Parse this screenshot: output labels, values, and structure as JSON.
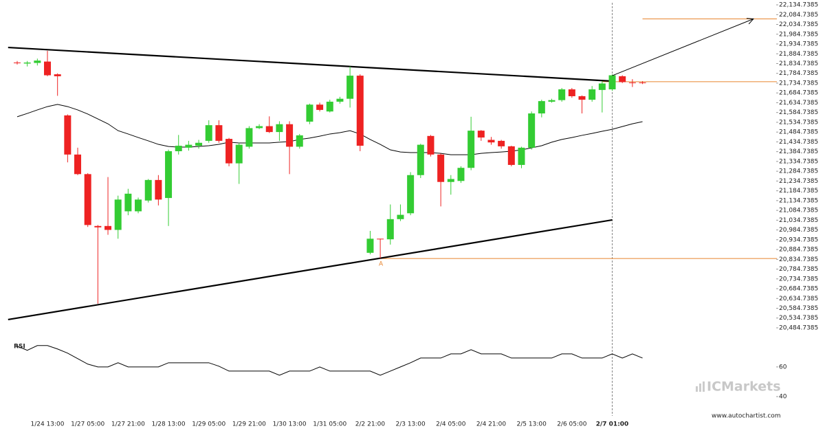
{
  "chart_data": {
    "type": "candlestick",
    "categories": [
      null,
      null,
      null,
      "1/24 13:00",
      null,
      null,
      null,
      "1/27 05:00",
      null,
      null,
      null,
      "1/27 21:00",
      null,
      null,
      null,
      "1/28 13:00",
      null,
      null,
      null,
      "1/29 05:00",
      null,
      null,
      null,
      "1/29 21:00",
      null,
      null,
      null,
      "1/30 13:00",
      null,
      null,
      null,
      "1/31 05:00",
      null,
      null,
      null,
      "2/2 21:00",
      null,
      null,
      null,
      "2/3 13:00",
      null,
      null,
      null,
      "2/4 05:00",
      null,
      null,
      null,
      "2/4 21:00",
      null,
      null,
      null,
      "2/5 13:00",
      null,
      null,
      null,
      "2/6 05:00",
      null,
      null,
      null,
      "2/7 01:00",
      null,
      null,
      null
    ],
    "current_index": 59,
    "candles": {
      "up_color": "#33cc33",
      "down_color": "#ee2222",
      "open": [
        21840,
        21835,
        21838,
        21845,
        21780,
        21570,
        21370,
        21270,
        21005,
        21005,
        20985,
        21080,
        21080,
        21135,
        21240,
        21148,
        21387,
        21405,
        21415,
        21440,
        21520,
        21450,
        21325,
        21410,
        21505,
        21515,
        21485,
        21525,
        21410,
        21538,
        21625,
        21590,
        21640,
        21655,
        21773,
        20868,
        20940,
        20937,
        21040,
        21070,
        21265,
        21465,
        21370,
        21230,
        21235,
        21302,
        21492,
        21445,
        21440,
        21412,
        21317,
        21405,
        21580,
        21640,
        21648,
        21703,
        21668,
        21650,
        21700,
        21703,
        21770,
        21738,
        21738
      ],
      "high": [
        21848,
        21848,
        21860,
        21900,
        21785,
        21575,
        21405,
        21275,
        21010,
        21255,
        21160,
        21195,
        21150,
        21245,
        21265,
        21395,
        21470,
        21440,
        21445,
        21545,
        21545,
        21455,
        21430,
        21515,
        21525,
        21565,
        21540,
        21540,
        21475,
        21630,
        21635,
        21650,
        21665,
        21820,
        21780,
        20980,
        20940,
        21115,
        21115,
        21280,
        21425,
        21470,
        21375,
        21265,
        21310,
        21563,
        21495,
        21460,
        21445,
        21415,
        21410,
        21590,
        21650,
        21655,
        21710,
        21710,
        21672,
        21720,
        21745,
        21780,
        21775,
        21755,
        21745
      ],
      "low": [
        21830,
        21820,
        21825,
        21770,
        21670,
        21330,
        21265,
        21000,
        20608,
        20960,
        20940,
        21060,
        21070,
        21125,
        21110,
        21005,
        21370,
        21390,
        21400,
        21430,
        21430,
        21310,
        21220,
        21400,
        21500,
        21480,
        21440,
        21270,
        21400,
        21525,
        21590,
        21585,
        21630,
        21610,
        21387,
        20860,
        20840,
        20910,
        21030,
        21060,
        21250,
        21360,
        21105,
        21165,
        21225,
        21290,
        21440,
        21420,
        21400,
        21310,
        21300,
        21395,
        21560,
        21635,
        21640,
        21660,
        21580,
        21640,
        21585,
        21695,
        21735,
        21715,
        21730
      ],
      "close": [
        21838,
        21840,
        21850,
        21775,
        21770,
        21370,
        21270,
        21010,
        20998,
        20985,
        21140,
        21170,
        21140,
        21240,
        21140,
        21387,
        21415,
        21420,
        21430,
        21520,
        21440,
        21325,
        21420,
        21505,
        21515,
        21485,
        21525,
        21410,
        21468,
        21625,
        21598,
        21640,
        21655,
        21773,
        21415,
        20940,
        20937,
        21040,
        21062,
        21265,
        21420,
        21370,
        21230,
        21245,
        21302,
        21492,
        21457,
        21432,
        21412,
        21317,
        21405,
        21580,
        21643,
        21648,
        21703,
        21668,
        21650,
        21703,
        21733,
        21775,
        21740,
        21736,
        21735
      ]
    },
    "ma": {
      "color": "#000000",
      "values": [
        21563,
        21580,
        21598,
        21615,
        21626,
        21615,
        21598,
        21577,
        21552,
        21527,
        21492,
        21475,
        21457,
        21440,
        21422,
        21411,
        21408,
        21408,
        21411,
        21415,
        21422,
        21433,
        21429,
        21429,
        21429,
        21429,
        21433,
        21436,
        21447,
        21454,
        21464,
        21475,
        21482,
        21492,
        21475,
        21447,
        21422,
        21394,
        21383,
        21380,
        21380,
        21380,
        21376,
        21369,
        21369,
        21369,
        21376,
        21380,
        21383,
        21387,
        21394,
        21404,
        21415,
        21433,
        21447,
        21457,
        21468,
        21478,
        21489,
        21499,
        21513,
        21527,
        21538
      ]
    },
    "trendlines": [
      {
        "x": [
          -0.9,
          59
        ],
        "values": [
          21917,
          21745
        ]
      },
      {
        "x": [
          -0.9,
          59
        ],
        "values": [
          20527,
          21036
        ]
      }
    ],
    "levels": [
      {
        "value": 21742,
        "from": 58
      },
      {
        "value": 20839,
        "from": 36,
        "label": "A"
      },
      {
        "value": 22063,
        "from": 62
      }
    ],
    "forecast": {
      "x": [
        59,
        73
      ],
      "values": [
        21773,
        22063
      ]
    },
    "level_color": "#e8842c",
    "ylim": [
      20439,
      22159.5
    ],
    "yticks": [
      {
        "value": 20484.7385,
        "label": "20,484.7385"
      },
      {
        "value": 20534.7385,
        "label": "20,534.7385"
      },
      {
        "value": 20584.7385,
        "label": "20,584.7385"
      },
      {
        "value": 20634.7385,
        "label": "20,634.7385"
      },
      {
        "value": 20684.7385,
        "label": "20,684.7385"
      },
      {
        "value": 20734.7385,
        "label": "20,734.7385"
      },
      {
        "value": 20784.7385,
        "label": "20,784.7385"
      },
      {
        "value": 20834.7385,
        "label": "20,834.7385"
      },
      {
        "value": 20884.7385,
        "label": "20,884.7385"
      },
      {
        "value": 20934.7385,
        "label": "20,934.7385"
      },
      {
        "value": 20984.7385,
        "label": "20,984.7385"
      },
      {
        "value": 21034.7385,
        "label": "21,034.7385"
      },
      {
        "value": 21084.7385,
        "label": "21,084.7385"
      },
      {
        "value": 21134.7385,
        "label": "21,134.7385"
      },
      {
        "value": 21184.7385,
        "label": "21,184.7385"
      },
      {
        "value": 21234.7385,
        "label": "21,234.7385"
      },
      {
        "value": 21284.7385,
        "label": "21,284.7385"
      },
      {
        "value": 21334.7385,
        "label": "21,334.7385"
      },
      {
        "value": 21384.7385,
        "label": "21,384.7385"
      },
      {
        "value": 21434.7385,
        "label": "21,434.7385"
      },
      {
        "value": 21484.7385,
        "label": "21,484.7385"
      },
      {
        "value": 21534.7385,
        "label": "21,534.7385"
      },
      {
        "value": 21584.7385,
        "label": "21,584.7385"
      },
      {
        "value": 21634.7385,
        "label": "21,634.7385"
      },
      {
        "value": 21684.7385,
        "label": "21,684.7385"
      },
      {
        "value": 21734.7385,
        "label": "21,734.7385"
      },
      {
        "value": 21784.7385,
        "label": "21,784.7385"
      },
      {
        "value": 21834.7385,
        "label": "21,834.7385"
      },
      {
        "value": 21884.7385,
        "label": "21,884.7385"
      },
      {
        "value": 21934.7385,
        "label": "21,934.7385"
      },
      {
        "value": 21984.7385,
        "label": "21,984.7385"
      },
      {
        "value": 22034.7385,
        "label": "22,034.7385"
      },
      {
        "value": 22084.7385,
        "label": "22,084.7385"
      },
      {
        "value": 22134.7385,
        "label": "22,134.7385"
      }
    ],
    "rsi": {
      "label": "RSI",
      "ylim": [
        34,
        78
      ],
      "yticks": [
        60,
        40
      ],
      "values": [
        74.0,
        71.2,
        74.4,
        74.4,
        72.1,
        69.3,
        65.6,
        61.9,
        60,
        60,
        62.8,
        60,
        60,
        60,
        60,
        62.8,
        62.8,
        62.8,
        62.8,
        62.8,
        60.5,
        57.2,
        57.2,
        57.2,
        57.2,
        57.2,
        54.4,
        57.2,
        57.2,
        57.2,
        60,
        57.2,
        57.2,
        57.2,
        57.2,
        57.2,
        54.4,
        57.2,
        60,
        62.8,
        66.0,
        66.0,
        66.0,
        68.8,
        68.8,
        71.6,
        68.8,
        68.8,
        68.8,
        66.0,
        66.0,
        66.0,
        66.0,
        66.0,
        68.8,
        68.8,
        66.0,
        66.0,
        66.0,
        68.8,
        66.0,
        68.8,
        66.0
      ]
    },
    "watermark": "ICMarkets",
    "source": "www.autochartist.com"
  }
}
